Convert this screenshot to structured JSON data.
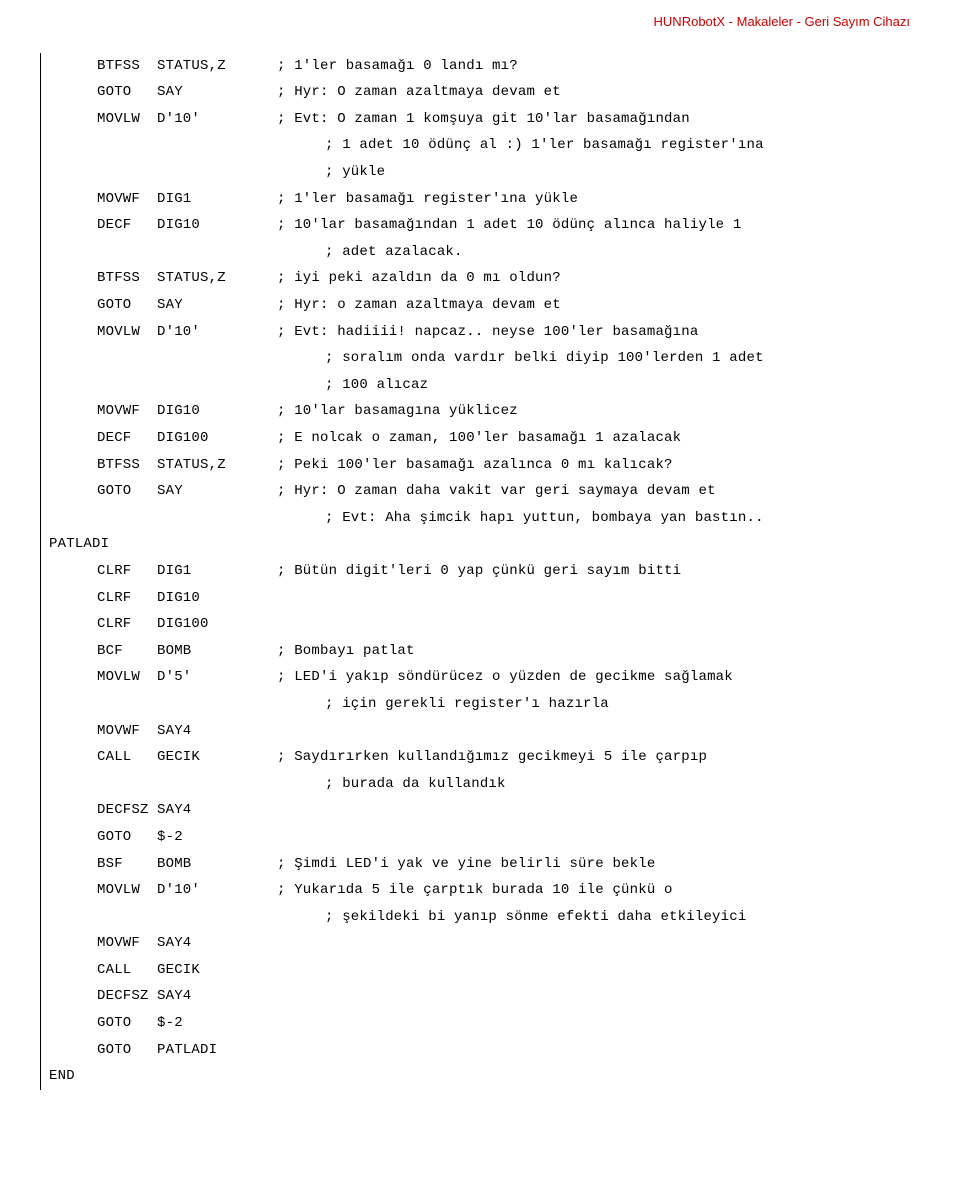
{
  "header": "HUNRobotX - Makaleler - Geri Sayım Cihazı",
  "lines": [
    {
      "indent": 1,
      "op": "BTFSS",
      "arg": "STATUS,Z",
      "argw": false,
      "comment": "; 1'ler basamağı 0 landı mı?"
    },
    {
      "indent": 1,
      "op": "GOTO",
      "arg": "SAY",
      "argw": false,
      "comment": "; Hyr: O zaman azaltmaya devam et"
    },
    {
      "indent": 1,
      "op": "MOVLW",
      "arg": "D'10'",
      "argw": false,
      "comment": "; Evt: O zaman 1 komşuya git 10'lar basamağından"
    },
    {
      "indent": 1,
      "only": true,
      "comment": "; 1 adet 10 ödünç al :) 1'ler basamağı register'ına"
    },
    {
      "indent": 1,
      "only": true,
      "comment": "; yükle"
    },
    {
      "indent": 1,
      "op": "MOVWF",
      "arg": "DIG1",
      "argw": false,
      "comment": "; 1'ler basamağı register'ına yükle"
    },
    {
      "indent": 1,
      "op": "DECF",
      "arg": "DIG10",
      "argw": false,
      "comment": "; 10'lar basamağından 1 adet 10 ödünç alınca haliyle 1"
    },
    {
      "indent": 1,
      "only": true,
      "comment": "; adet azalacak."
    },
    {
      "indent": 1,
      "op": "BTFSS",
      "arg": "STATUS,Z",
      "argw": false,
      "comment": "; iyi peki azaldın da 0 mı oldun?"
    },
    {
      "indent": 1,
      "op": "GOTO",
      "arg": "SAY",
      "argw": false,
      "comment": "; Hyr: o zaman azaltmaya devam et"
    },
    {
      "indent": 1,
      "op": "MOVLW",
      "arg": "D'10'",
      "argw": false,
      "comment": "; Evt: hadiiii! napcaz.. neyse 100'ler basamağına"
    },
    {
      "indent": 1,
      "only": true,
      "comment": "; soralım onda vardır belki diyip 100'lerden 1 adet"
    },
    {
      "indent": 1,
      "only": true,
      "comment": "; 100 alıcaz"
    },
    {
      "indent": 1,
      "op": "MOVWF",
      "arg": "DIG10",
      "argw": false,
      "comment": "; 10'lar basamagına yüklicez"
    },
    {
      "indent": 1,
      "op": "DECF",
      "arg": "DIG100",
      "argw": false,
      "comment": "; E nolcak o zaman, 100'ler basamağı 1 azalacak"
    },
    {
      "indent": 1,
      "op": "BTFSS",
      "arg": "STATUS,Z",
      "argw": false,
      "comment": "; Peki 100'ler basamağı azalınca 0 mı kalıcak?"
    },
    {
      "indent": 1,
      "op": "GOTO",
      "arg": "SAY",
      "argw": false,
      "comment": "; Hyr: O zaman daha vakit var geri saymaya devam et"
    },
    {
      "indent": 1,
      "only": true,
      "comment": "; Evt: Aha şimcik hapı yuttun, bombaya yan bastın.."
    },
    {
      "indent": 0,
      "label": "PATLADI"
    },
    {
      "indent": 1,
      "op": "CLRF",
      "arg": "DIG1",
      "argw": false,
      "comment": "; Bütün digit'leri 0 yap çünkü geri sayım bitti"
    },
    {
      "indent": 1,
      "op": "CLRF",
      "arg": "DIG10",
      "argw": false,
      "comment": ""
    },
    {
      "indent": 1,
      "op": "CLRF",
      "arg": "DIG100",
      "argw": false,
      "comment": ""
    },
    {
      "indent": 1,
      "op": "BCF",
      "arg": "BOMB",
      "argw": false,
      "comment": "; Bombayı patlat"
    },
    {
      "indent": 1,
      "op": "MOVLW",
      "arg": "D'5'",
      "argw": false,
      "comment": "; LED'i yakıp söndürücez o yüzden de gecikme sağlamak"
    },
    {
      "indent": 1,
      "only": true,
      "comment": "; için gerekli register'ı hazırla"
    },
    {
      "indent": 1,
      "op": "MOVWF",
      "arg": "SAY4",
      "argw": false,
      "comment": ""
    },
    {
      "indent": 1,
      "op": "CALL",
      "arg": "GECIK",
      "argw": false,
      "comment": "; Saydırırken kullandığımız gecikmeyi 5 ile çarpıp"
    },
    {
      "indent": 1,
      "only": true,
      "comment": "; burada da kullandık"
    },
    {
      "indent": 1,
      "op": "DECFSZ",
      "arg": "SAY4",
      "argw": true,
      "comment": ""
    },
    {
      "indent": 1,
      "op": "GOTO",
      "arg": "$-2",
      "argw": false,
      "comment": ""
    },
    {
      "indent": 1,
      "op": "BSF",
      "arg": "BOMB",
      "argw": false,
      "comment": "; Şimdi LED'i yak ve yine belirli süre bekle"
    },
    {
      "indent": 1,
      "op": "MOVLW",
      "arg": "D'10'",
      "argw": false,
      "comment": "; Yukarıda 5 ile çarptık burada 10 ile çünkü o"
    },
    {
      "indent": 1,
      "only": true,
      "comment": "; şekildeki bi yanıp sönme efekti daha etkileyici"
    },
    {
      "indent": 1,
      "op": "MOVWF",
      "arg": "SAY4",
      "argw": false,
      "comment": ""
    },
    {
      "indent": 1,
      "op": "CALL",
      "arg": "GECIK",
      "argw": false,
      "comment": ""
    },
    {
      "indent": 1,
      "op": "DECFSZ",
      "arg": "SAY4",
      "argw": true,
      "comment": ""
    },
    {
      "indent": 1,
      "op": "GOTO",
      "arg": "$-2",
      "argw": false,
      "comment": ""
    },
    {
      "indent": 1,
      "op": "GOTO",
      "arg": "PATLADI",
      "argw": false,
      "comment": ""
    },
    {
      "indent": 0,
      "label": "END"
    }
  ]
}
